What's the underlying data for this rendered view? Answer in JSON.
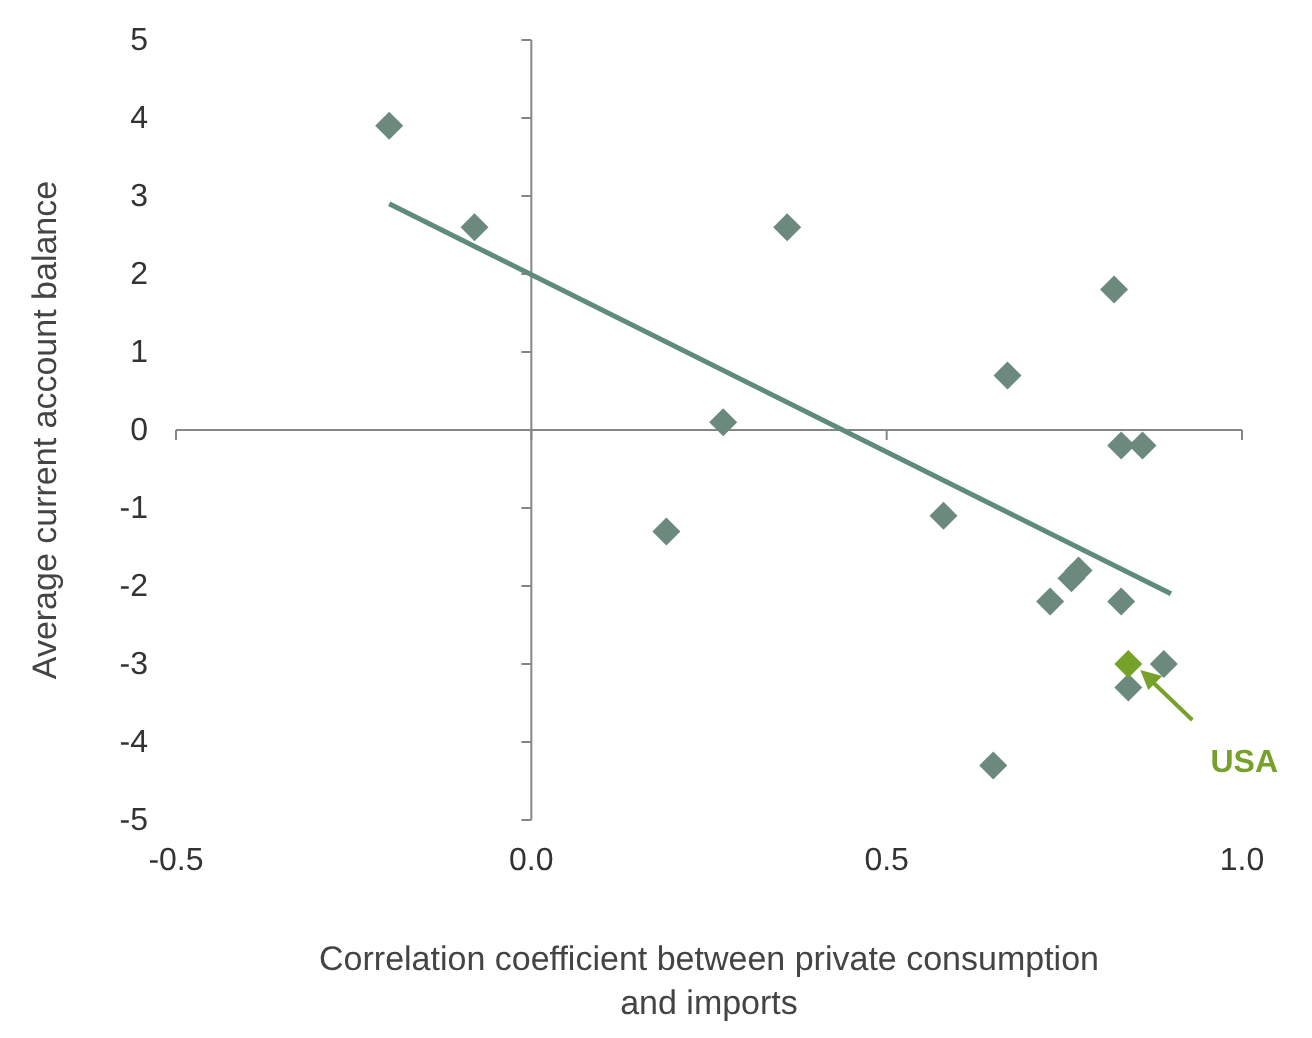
{
  "chart_data": {
    "type": "scatter",
    "xlabel": "Correlation coefficient between private consumption and imports",
    "ylabel": "Average current account balance",
    "xlim": [
      -0.5,
      1.0
    ],
    "ylim": [
      -5,
      5
    ],
    "xticks": [
      {
        "value": -0.5,
        "label": "-0.5"
      },
      {
        "value": 0,
        "label": "0.0"
      },
      {
        "value": 0.5,
        "label": "0.5"
      },
      {
        "value": 1,
        "label": "1.0"
      }
    ],
    "yticks": [
      -5,
      -4,
      -3,
      -2,
      -1,
      0,
      1,
      2,
      3,
      4,
      5
    ],
    "marker": "diamond",
    "series": [
      {
        "color": "#6b8a7d",
        "x": [
          -0.2,
          -0.08,
          0.36,
          0.27,
          0.19,
          0.67,
          0.82,
          0.83,
          0.86,
          0.58,
          0.77,
          0.76,
          0.73,
          0.83,
          0.89,
          0.84,
          0.65
        ],
        "values": [
          3.9,
          2.6,
          2.6,
          0.1,
          -1.3,
          0.7,
          1.8,
          -0.2,
          -0.2,
          -1.1,
          -1.8,
          -1.9,
          -2.2,
          -2.2,
          -3.0,
          -3.3,
          -4.3
        ]
      },
      {
        "name": "USA",
        "color": "#76a12a",
        "x": [
          0.84
        ],
        "values": [
          -3.0
        ]
      },
      {
        "type": "line",
        "color": "#5f8a7c",
        "marker": "none",
        "x": [
          -0.2,
          0.9
        ],
        "values": [
          2.9,
          -2.1
        ]
      }
    ]
  }
}
